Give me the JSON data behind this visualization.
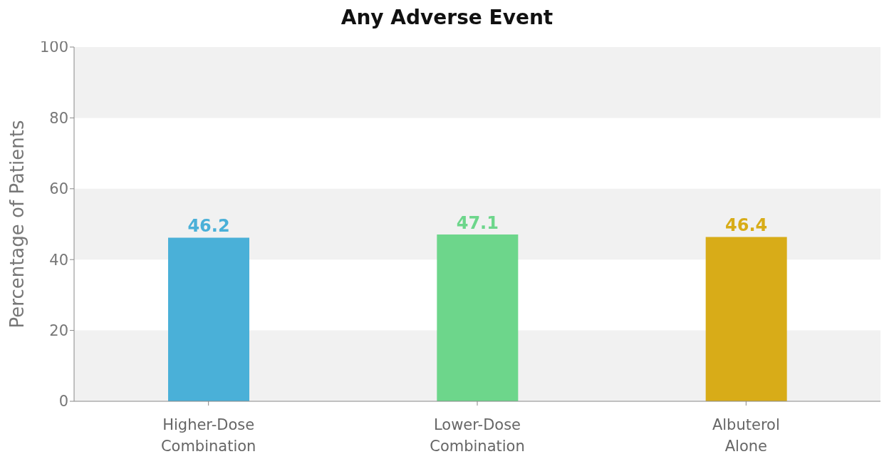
{
  "chart_data": {
    "type": "bar",
    "title": "Any Adverse Event",
    "ylabel": "Percentage of Patients",
    "categories": [
      "Higher-Dose Combination",
      "Lower-Dose Combination",
      "Albuterol Alone"
    ],
    "values": [
      46.2,
      47.1,
      46.4
    ],
    "colors": [
      "#4ab0d8",
      "#6dd68b",
      "#d8ac18"
    ],
    "ylim": [
      0,
      100
    ],
    "yticks": [
      0,
      20,
      40,
      60,
      80,
      100
    ],
    "data_labels": true,
    "bands": [
      {
        "axis": "y",
        "from": 0,
        "to": 20,
        "color": "#f1f1f1"
      },
      {
        "axis": "y",
        "from": 40,
        "to": 60,
        "color": "#f1f1f1"
      },
      {
        "axis": "y",
        "from": 80,
        "to": 100,
        "color": "#f1f1f1"
      }
    ]
  }
}
